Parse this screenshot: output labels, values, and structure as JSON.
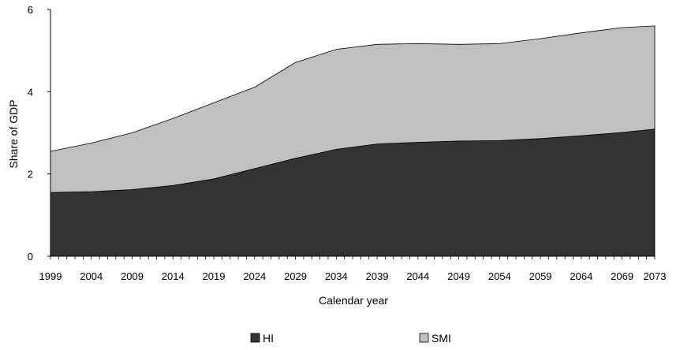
{
  "chart_data": {
    "type": "area",
    "stacked": true,
    "title": "",
    "xlabel": "Calendar year",
    "ylabel": "Share of GDP",
    "xlim": [
      1999,
      2073
    ],
    "ylim": [
      0,
      6
    ],
    "y_ticks": [
      0,
      2,
      4,
      6
    ],
    "x_ticks": [
      1999,
      2004,
      2009,
      2014,
      2019,
      2024,
      2029,
      2034,
      2039,
      2044,
      2049,
      2054,
      2059,
      2064,
      2069,
      2073
    ],
    "grid": false,
    "legend_position": "bottom",
    "x": [
      1999,
      2004,
      2009,
      2014,
      2019,
      2024,
      2029,
      2034,
      2039,
      2044,
      2049,
      2054,
      2059,
      2064,
      2069,
      2073
    ],
    "series": [
      {
        "name": "HI",
        "color": "#333333",
        "values": [
          1.55,
          1.57,
          1.62,
          1.72,
          1.88,
          2.13,
          2.38,
          2.6,
          2.73,
          2.77,
          2.8,
          2.81,
          2.86,
          2.93,
          3.01,
          3.09
        ]
      },
      {
        "name": "SMI",
        "color": "#c0c0c0",
        "values": [
          1.0,
          1.18,
          1.38,
          1.63,
          1.85,
          1.98,
          2.33,
          2.43,
          2.42,
          2.4,
          2.35,
          2.36,
          2.43,
          2.5,
          2.55,
          2.51
        ]
      }
    ]
  }
}
